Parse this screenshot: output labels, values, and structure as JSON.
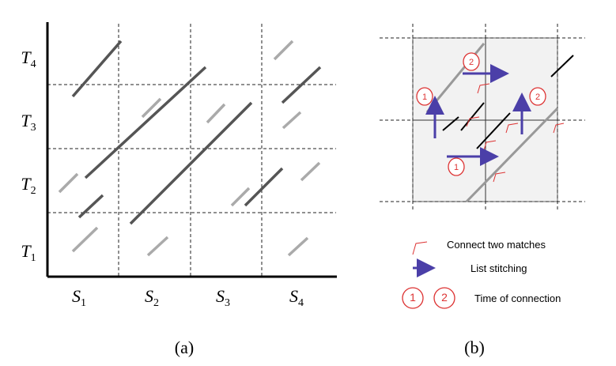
{
  "panel_a": {
    "rows": [
      {
        "letter": "T",
        "sub": "4"
      },
      {
        "letter": "T",
        "sub": "3"
      },
      {
        "letter": "T",
        "sub": "2"
      },
      {
        "letter": "T",
        "sub": "1"
      }
    ],
    "columns": [
      {
        "letter": "S",
        "sub": "1"
      },
      {
        "letter": "S",
        "sub": "2"
      },
      {
        "letter": "S",
        "sub": "3"
      },
      {
        "letter": "S",
        "sub": "4"
      }
    ],
    "caption": "(a)"
  },
  "panel_b": {
    "markers": [
      "1",
      "2",
      "2",
      "1"
    ],
    "legend": [
      {
        "label": "Connect two matches"
      },
      {
        "label": "List stitching"
      },
      {
        "markers": [
          "1",
          "2"
        ],
        "label": "Time of connection"
      }
    ],
    "caption": "(b)"
  }
}
